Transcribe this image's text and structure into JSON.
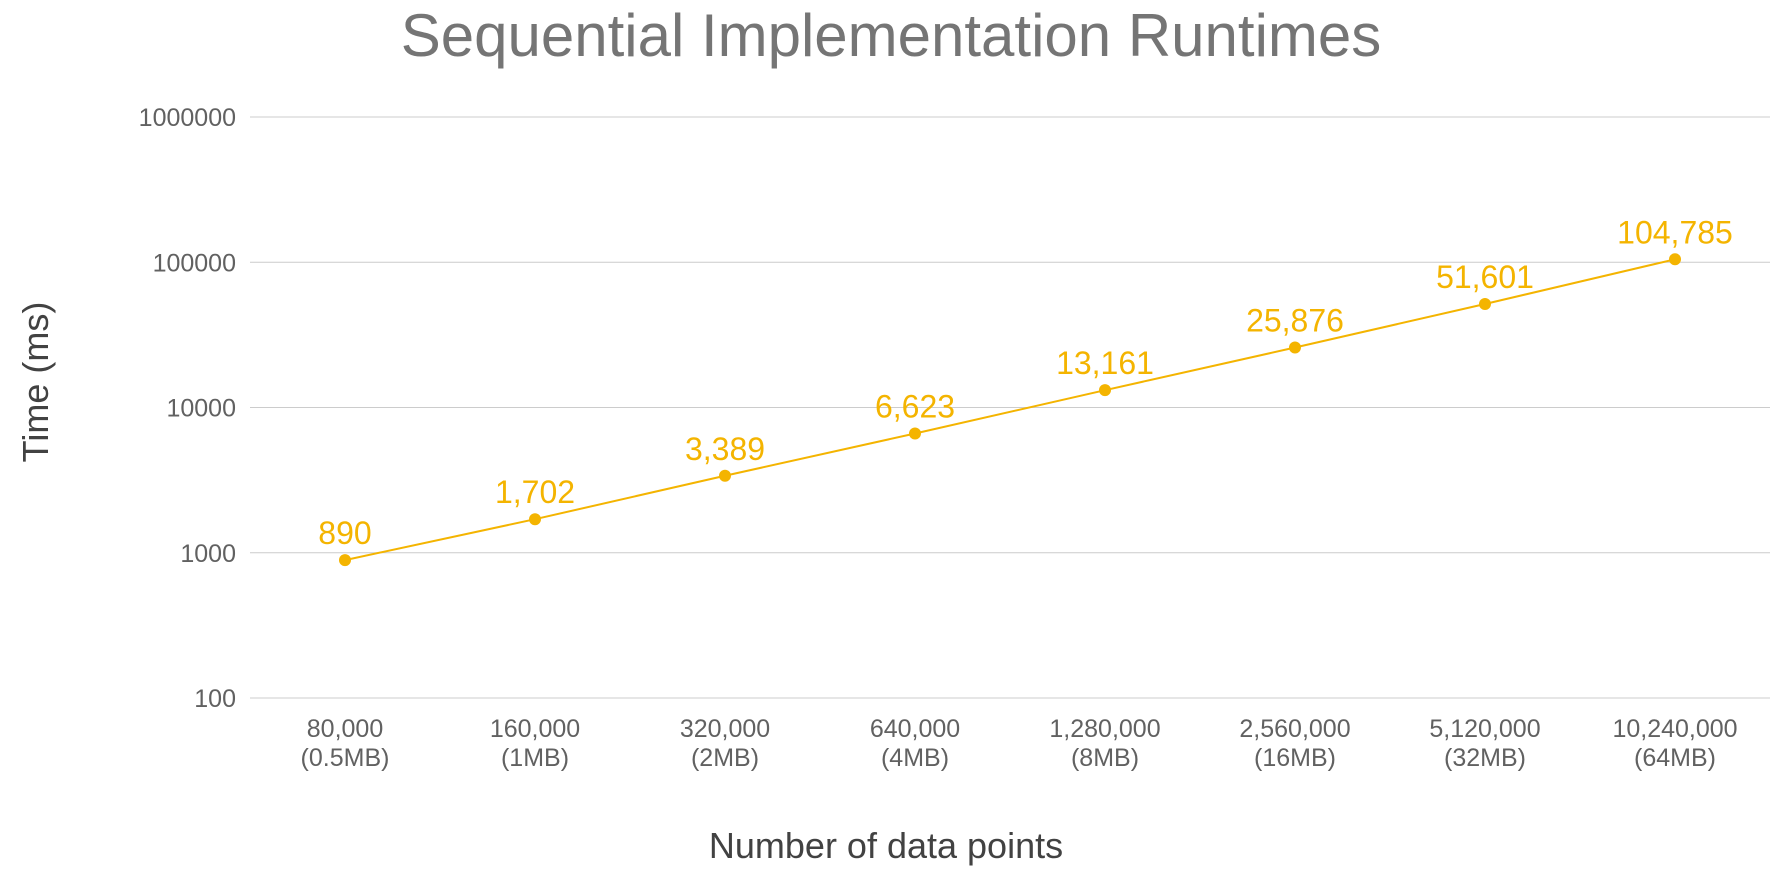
{
  "chart_data": {
    "type": "line",
    "title": "Sequential Implementation Runtimes",
    "xlabel": "Number of data points",
    "ylabel": "Time (ms)",
    "y_scale": "log",
    "ylim": [
      100,
      1000000
    ],
    "yticks": [
      100,
      1000,
      10000,
      100000,
      1000000
    ],
    "ytick_labels": [
      "100",
      "1000",
      "10000",
      "100000",
      "1000000"
    ],
    "grid": true,
    "legend": "none",
    "categories": [
      [
        "80,000",
        "(0.5MB)"
      ],
      [
        "160,000",
        "(1MB)"
      ],
      [
        "320,000",
        "(2MB)"
      ],
      [
        "640,000",
        "(4MB)"
      ],
      [
        "1,280,000",
        "(8MB)"
      ],
      [
        "2,560,000",
        "(16MB)"
      ],
      [
        "5,120,000",
        "(32MB)"
      ],
      [
        "10,240,000",
        "(64MB)"
      ]
    ],
    "series": [
      {
        "color": "#f4b400",
        "values": [
          890,
          1702,
          3389,
          6623,
          13161,
          25876,
          51601,
          104785
        ],
        "value_labels": [
          "890",
          "1,702",
          "3,389",
          "6,623",
          "13,161",
          "25,876",
          "51,601",
          "104,785"
        ]
      }
    ]
  }
}
